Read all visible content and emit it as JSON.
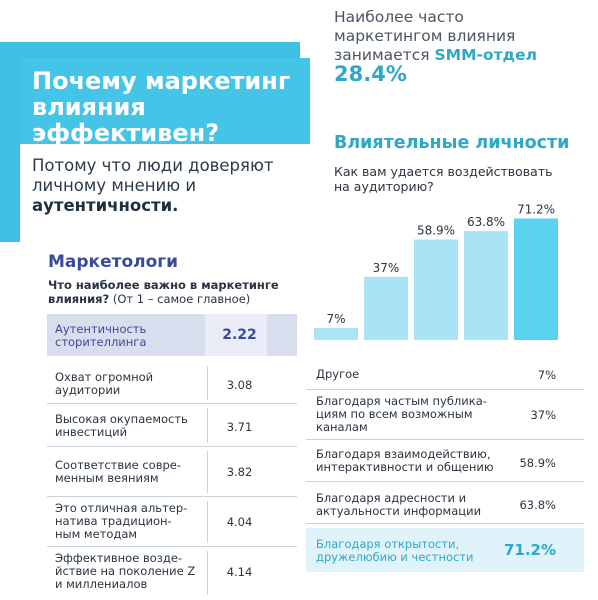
{
  "hero": {
    "title": "Почему маркетинг\nвлияния\nэффективен?",
    "subtitle_plain": "Потому что люди доверяют личному мнению и ",
    "subtitle_bold": "аутентичности."
  },
  "stat": {
    "label_plain": "Наиболее часто маркетингом влияния занимается ",
    "label_accent": "SMM-отдел",
    "value": "28.4%"
  },
  "colors": {
    "accent": "#2fa8c8",
    "banner": "#44c4e6",
    "left_accent": "#3a4a9a",
    "bar_light": "#a8e4f3",
    "bar_dark": "#5ad2ef"
  },
  "right": {
    "title": "Влиятельные личности",
    "question": "Как вам удается воздействовать на аудиторию?",
    "rows": [
      {
        "label": "Другое",
        "value": "7%"
      },
      {
        "label": "Благодаря частым публика-\nциям по всем возможным\nканалам",
        "value": "37%"
      },
      {
        "label": "Благодаря взаимодействию,\nинтерактивности и общению",
        "value": "58.9%"
      },
      {
        "label": "Благодаря адресности и\nактуальности информации",
        "value": "63.8%"
      },
      {
        "label": "Благодаря открытости,\nдружелюбию и честности",
        "value": "71.2%"
      }
    ]
  },
  "left": {
    "title": "Маркетологи",
    "question_bold": "Что наиболее важно в маркетинге влияния?",
    "question_plain": " (От 1 – самое главное)",
    "rows": [
      {
        "label": "Аутентичность\nсторителлинга",
        "value": "2.22"
      },
      {
        "label": "Охват огромной\nаудитории",
        "value": "3.08"
      },
      {
        "label": "Высокая окупаемость\nинвестиций",
        "value": "3.71"
      },
      {
        "label": "Соответствие совре-\nменным веяниям",
        "value": "3.82"
      },
      {
        "label": "Это отличная альтер-\nнатива традицион-\nным методам",
        "value": "4.04"
      },
      {
        "label": "Эффективное возде-\nйствие на поколение Z\nи миллениалов",
        "value": "4.14"
      }
    ]
  },
  "chart_data": {
    "type": "bar",
    "title": "Влиятельные личности",
    "categories": [
      "Другое",
      "Благодаря частым публикациям по всем возможным каналам",
      "Благодаря взаимодействию, интерактивности и общению",
      "Благодаря адресности и актуальности информации",
      "Благодаря открытости, дружелюбию и честности"
    ],
    "values": [
      7,
      37,
      58.9,
      63.8,
      71.2
    ],
    "labels": [
      "7%",
      "37%",
      "58.9%",
      "63.8%",
      "71.2%"
    ],
    "unit": "%",
    "ylim": [
      0,
      75
    ],
    "grid": false,
    "legend": "none"
  }
}
